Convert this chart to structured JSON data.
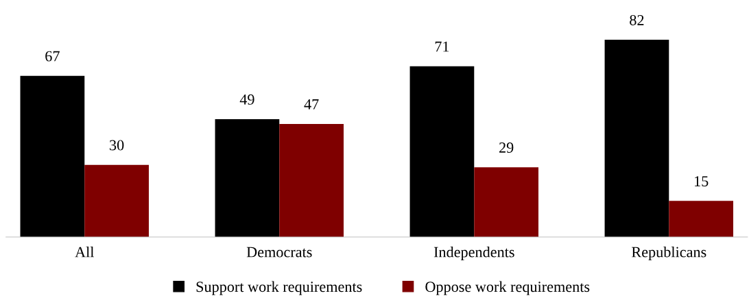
{
  "chart_data": {
    "type": "bar",
    "categories": [
      "All",
      "Democrats",
      "Independents",
      "Republicans"
    ],
    "series": [
      {
        "name": "Support work requirements",
        "color": "#000000",
        "values": [
          67,
          49,
          71,
          82
        ]
      },
      {
        "name": "Oppose work requirements",
        "color": "#7f0000",
        "values": [
          30,
          47,
          29,
          15
        ]
      }
    ],
    "data_labels": true,
    "legend": "bottom",
    "tick_labels": "x"
  }
}
